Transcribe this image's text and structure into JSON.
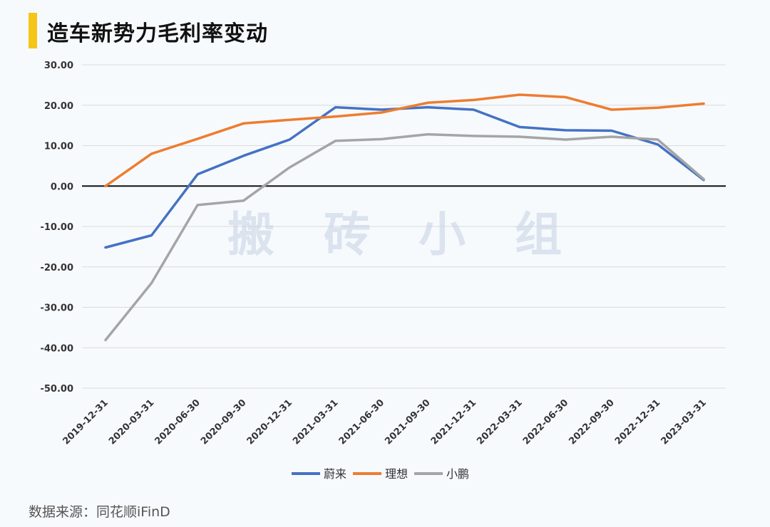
{
  "header": {
    "title": "造车新势力毛利率变动"
  },
  "watermark": {
    "text": [
      "搬",
      "砖",
      "小",
      "组"
    ]
  },
  "footer": {
    "source": "数据来源：同花顺iFinD"
  },
  "chart_data": {
    "type": "line",
    "title": "造车新势力毛利率变动",
    "xlabel": "",
    "ylabel": "",
    "ylim": [
      -50,
      30
    ],
    "yticks": [
      "30.00",
      "20.00",
      "10.00",
      "0.00",
      "-10.00",
      "-20.00",
      "-30.00",
      "-40.00",
      "-50.00"
    ],
    "grid": true,
    "legend": "bottom",
    "categories": [
      "2019-12-31",
      "2020-03-31",
      "2020-06-30",
      "2020-09-30",
      "2020-12-31",
      "2021-03-31",
      "2021-06-30",
      "2021-09-30",
      "2021-12-31",
      "2022-03-31",
      "2022-06-30",
      "2022-09-30",
      "2022-12-31",
      "2023-03-31"
    ],
    "series": [
      {
        "name": "蔚来",
        "color": "#4472c4",
        "values": [
          -15.2,
          -12.2,
          2.9,
          7.5,
          11.5,
          19.5,
          18.9,
          19.5,
          18.9,
          14.6,
          13.8,
          13.7,
          10.3,
          1.5
        ]
      },
      {
        "name": "理想",
        "color": "#ed7d31",
        "values": [
          0.0,
          8.0,
          11.7,
          15.5,
          16.4,
          17.2,
          18.2,
          20.6,
          21.3,
          22.6,
          22.0,
          18.9,
          19.4,
          20.4
        ]
      },
      {
        "name": "小鹏",
        "color": "#a5a5a5",
        "values": [
          -38.1,
          -24.0,
          -4.7,
          -3.6,
          4.6,
          11.2,
          11.6,
          12.8,
          12.4,
          12.2,
          11.5,
          12.2,
          11.5,
          1.7
        ]
      }
    ]
  }
}
